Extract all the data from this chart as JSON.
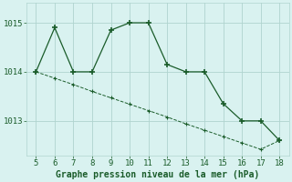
{
  "x": [
    5,
    6,
    7,
    8,
    9,
    10,
    11,
    12,
    13,
    14,
    15,
    16,
    17,
    18
  ],
  "y_main": [
    1014.0,
    1014.9,
    1014.0,
    1014.0,
    1014.85,
    1015.0,
    1015.0,
    1014.15,
    1014.0,
    1014.0,
    1013.35,
    1013.0,
    1013.0,
    1012.6
  ],
  "y_trend": [
    1014.0,
    1013.87,
    1013.74,
    1013.6,
    1013.47,
    1013.34,
    1013.21,
    1013.08,
    1012.94,
    1012.81,
    1012.68,
    1012.55,
    1012.42,
    1012.6
  ],
  "line_color": "#1a5c2a",
  "bg_color": "#d9f2f0",
  "grid_color": "#b0d4cf",
  "xlabel": "Graphe pression niveau de la mer (hPa)",
  "yticks": [
    1013,
    1014,
    1015
  ],
  "xticks": [
    5,
    6,
    7,
    8,
    9,
    10,
    11,
    12,
    13,
    14,
    15,
    16,
    17,
    18
  ],
  "ylim": [
    1012.3,
    1015.4
  ],
  "xlim": [
    4.5,
    18.5
  ]
}
